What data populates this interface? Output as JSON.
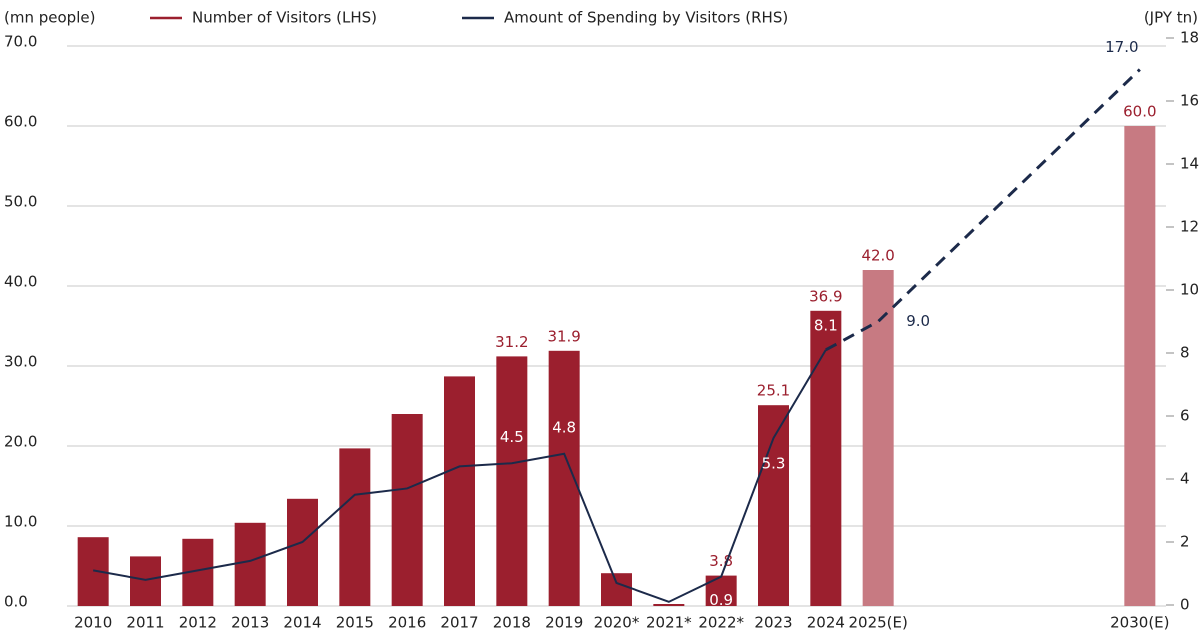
{
  "chart_data": {
    "type": "bar-line",
    "y_axis_label": "(mn people)",
    "y2_axis_label": "(JPY tn)",
    "categories": [
      "2010",
      "2011",
      "2012",
      "2013",
      "2014",
      "2015",
      "2016",
      "2017",
      "2018",
      "2019",
      "2020*",
      "2021*",
      "2022*",
      "2023",
      "2024",
      "2025(E)",
      "2030(E)"
    ],
    "x": [
      2010,
      2011,
      2012,
      2013,
      2014,
      2015,
      2016,
      2017,
      2018,
      2019,
      2020,
      2021,
      2022,
      2023,
      2024,
      2025,
      2030
    ],
    "xlim": [
      2009.5,
      2030.5
    ],
    "ylim": [
      0,
      70
    ],
    "yticks": [
      {
        "value": 0,
        "label": "0.0"
      },
      {
        "value": 10,
        "label": "10.0"
      },
      {
        "value": 20,
        "label": "20.0"
      },
      {
        "value": 30,
        "label": "30.0"
      },
      {
        "value": 40,
        "label": "40.0"
      },
      {
        "value": 50,
        "label": "50.0"
      },
      {
        "value": 60,
        "label": "60.0"
      },
      {
        "value": 70,
        "label": "70.0"
      }
    ],
    "y2lim": [
      0,
      18
    ],
    "y2ticks": [
      0,
      2,
      4,
      6,
      8,
      10,
      12,
      14,
      16,
      18
    ],
    "grid": true,
    "series": [
      {
        "name": "Number of Visitors (LHS)",
        "type": "bar",
        "color": "#9b1f2e",
        "colors": [
          "#9b1f2e",
          "#9b1f2e",
          "#9b1f2e",
          "#9b1f2e",
          "#9b1f2e",
          "#9b1f2e",
          "#9b1f2e",
          "#9b1f2e",
          "#9b1f2e",
          "#9b1f2e",
          "#9b1f2e",
          "#9b1f2e",
          "#9b1f2e",
          "#9b1f2e",
          "#9b1f2e",
          "#c77a82",
          "#c77a82"
        ],
        "values": [
          8.6,
          6.2,
          8.4,
          10.4,
          13.4,
          19.7,
          24.0,
          28.7,
          31.2,
          31.9,
          4.1,
          0.25,
          3.8,
          25.1,
          36.9,
          42.0,
          60.0
        ],
        "value_labels": [
          null,
          null,
          null,
          null,
          null,
          null,
          null,
          null,
          "31.2",
          "31.9",
          null,
          null,
          "3.8",
          "25.1",
          "36.9",
          "42.0",
          "60.0"
        ]
      },
      {
        "name": "Amount of Spending by Visitors (RHS)",
        "type": "line",
        "axis": "y2",
        "color": "#1c2a4a",
        "dashed": [
          false,
          false,
          false,
          false,
          false,
          false,
          false,
          false,
          false,
          false,
          false,
          false,
          false,
          false,
          false,
          true,
          true
        ],
        "values": [
          1.1,
          0.8,
          1.1,
          1.4,
          2.0,
          3.5,
          3.7,
          4.4,
          4.5,
          4.8,
          0.7,
          0.1,
          0.9,
          5.3,
          8.1,
          9.0,
          17.0
        ],
        "value_labels": [
          null,
          null,
          null,
          null,
          null,
          null,
          null,
          null,
          "4.5",
          "4.8",
          null,
          null,
          "0.9",
          "5.3",
          "8.1",
          "9.0",
          "17.0"
        ]
      }
    ]
  }
}
